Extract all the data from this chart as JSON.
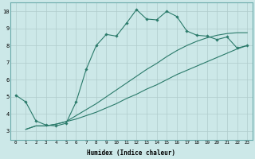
{
  "xlabel": "Humidex (Indice chaleur)",
  "bg_color": "#cce8e8",
  "line_color": "#2a7a6a",
  "grid_color": "#b0cccc",
  "xlim": [
    -0.5,
    23.5
  ],
  "ylim": [
    2.5,
    10.5
  ],
  "xticks": [
    0,
    1,
    2,
    3,
    4,
    5,
    6,
    7,
    8,
    9,
    10,
    11,
    12,
    13,
    14,
    15,
    16,
    17,
    18,
    19,
    20,
    21,
    22,
    23
  ],
  "yticks": [
    3,
    4,
    5,
    6,
    7,
    8,
    9,
    10
  ],
  "line1_x": [
    0,
    1,
    2,
    3,
    4,
    5,
    6,
    7,
    8,
    9,
    10,
    11,
    12,
    13,
    14,
    15,
    16,
    17,
    18,
    19,
    20,
    21,
    22,
    23
  ],
  "line1_y": [
    5.1,
    4.7,
    3.6,
    3.35,
    3.3,
    3.45,
    4.7,
    6.6,
    8.0,
    8.65,
    8.55,
    9.3,
    10.1,
    9.55,
    9.5,
    10.0,
    9.7,
    8.85,
    8.6,
    8.55,
    8.35,
    8.5,
    7.85,
    8.0
  ],
  "line2_x": [
    1,
    2,
    3,
    4,
    5,
    6,
    7,
    8,
    9,
    10,
    11,
    12,
    13,
    14,
    15,
    16,
    17,
    18,
    19,
    20,
    21,
    22,
    23
  ],
  "line2_y": [
    3.1,
    3.3,
    3.3,
    3.4,
    3.55,
    3.7,
    3.9,
    4.1,
    4.35,
    4.6,
    4.9,
    5.15,
    5.45,
    5.7,
    6.0,
    6.3,
    6.55,
    6.8,
    7.05,
    7.3,
    7.55,
    7.8,
    8.0
  ],
  "line3_x": [
    1,
    2,
    3,
    4,
    5,
    6,
    7,
    8,
    9,
    10,
    11,
    12,
    13,
    14,
    15,
    16,
    17,
    18,
    19,
    20,
    21,
    22,
    23
  ],
  "line3_y": [
    3.1,
    3.3,
    3.3,
    3.4,
    3.55,
    3.9,
    4.25,
    4.6,
    5.0,
    5.4,
    5.8,
    6.2,
    6.6,
    6.95,
    7.35,
    7.7,
    8.0,
    8.25,
    8.45,
    8.6,
    8.7,
    8.75,
    8.75
  ]
}
